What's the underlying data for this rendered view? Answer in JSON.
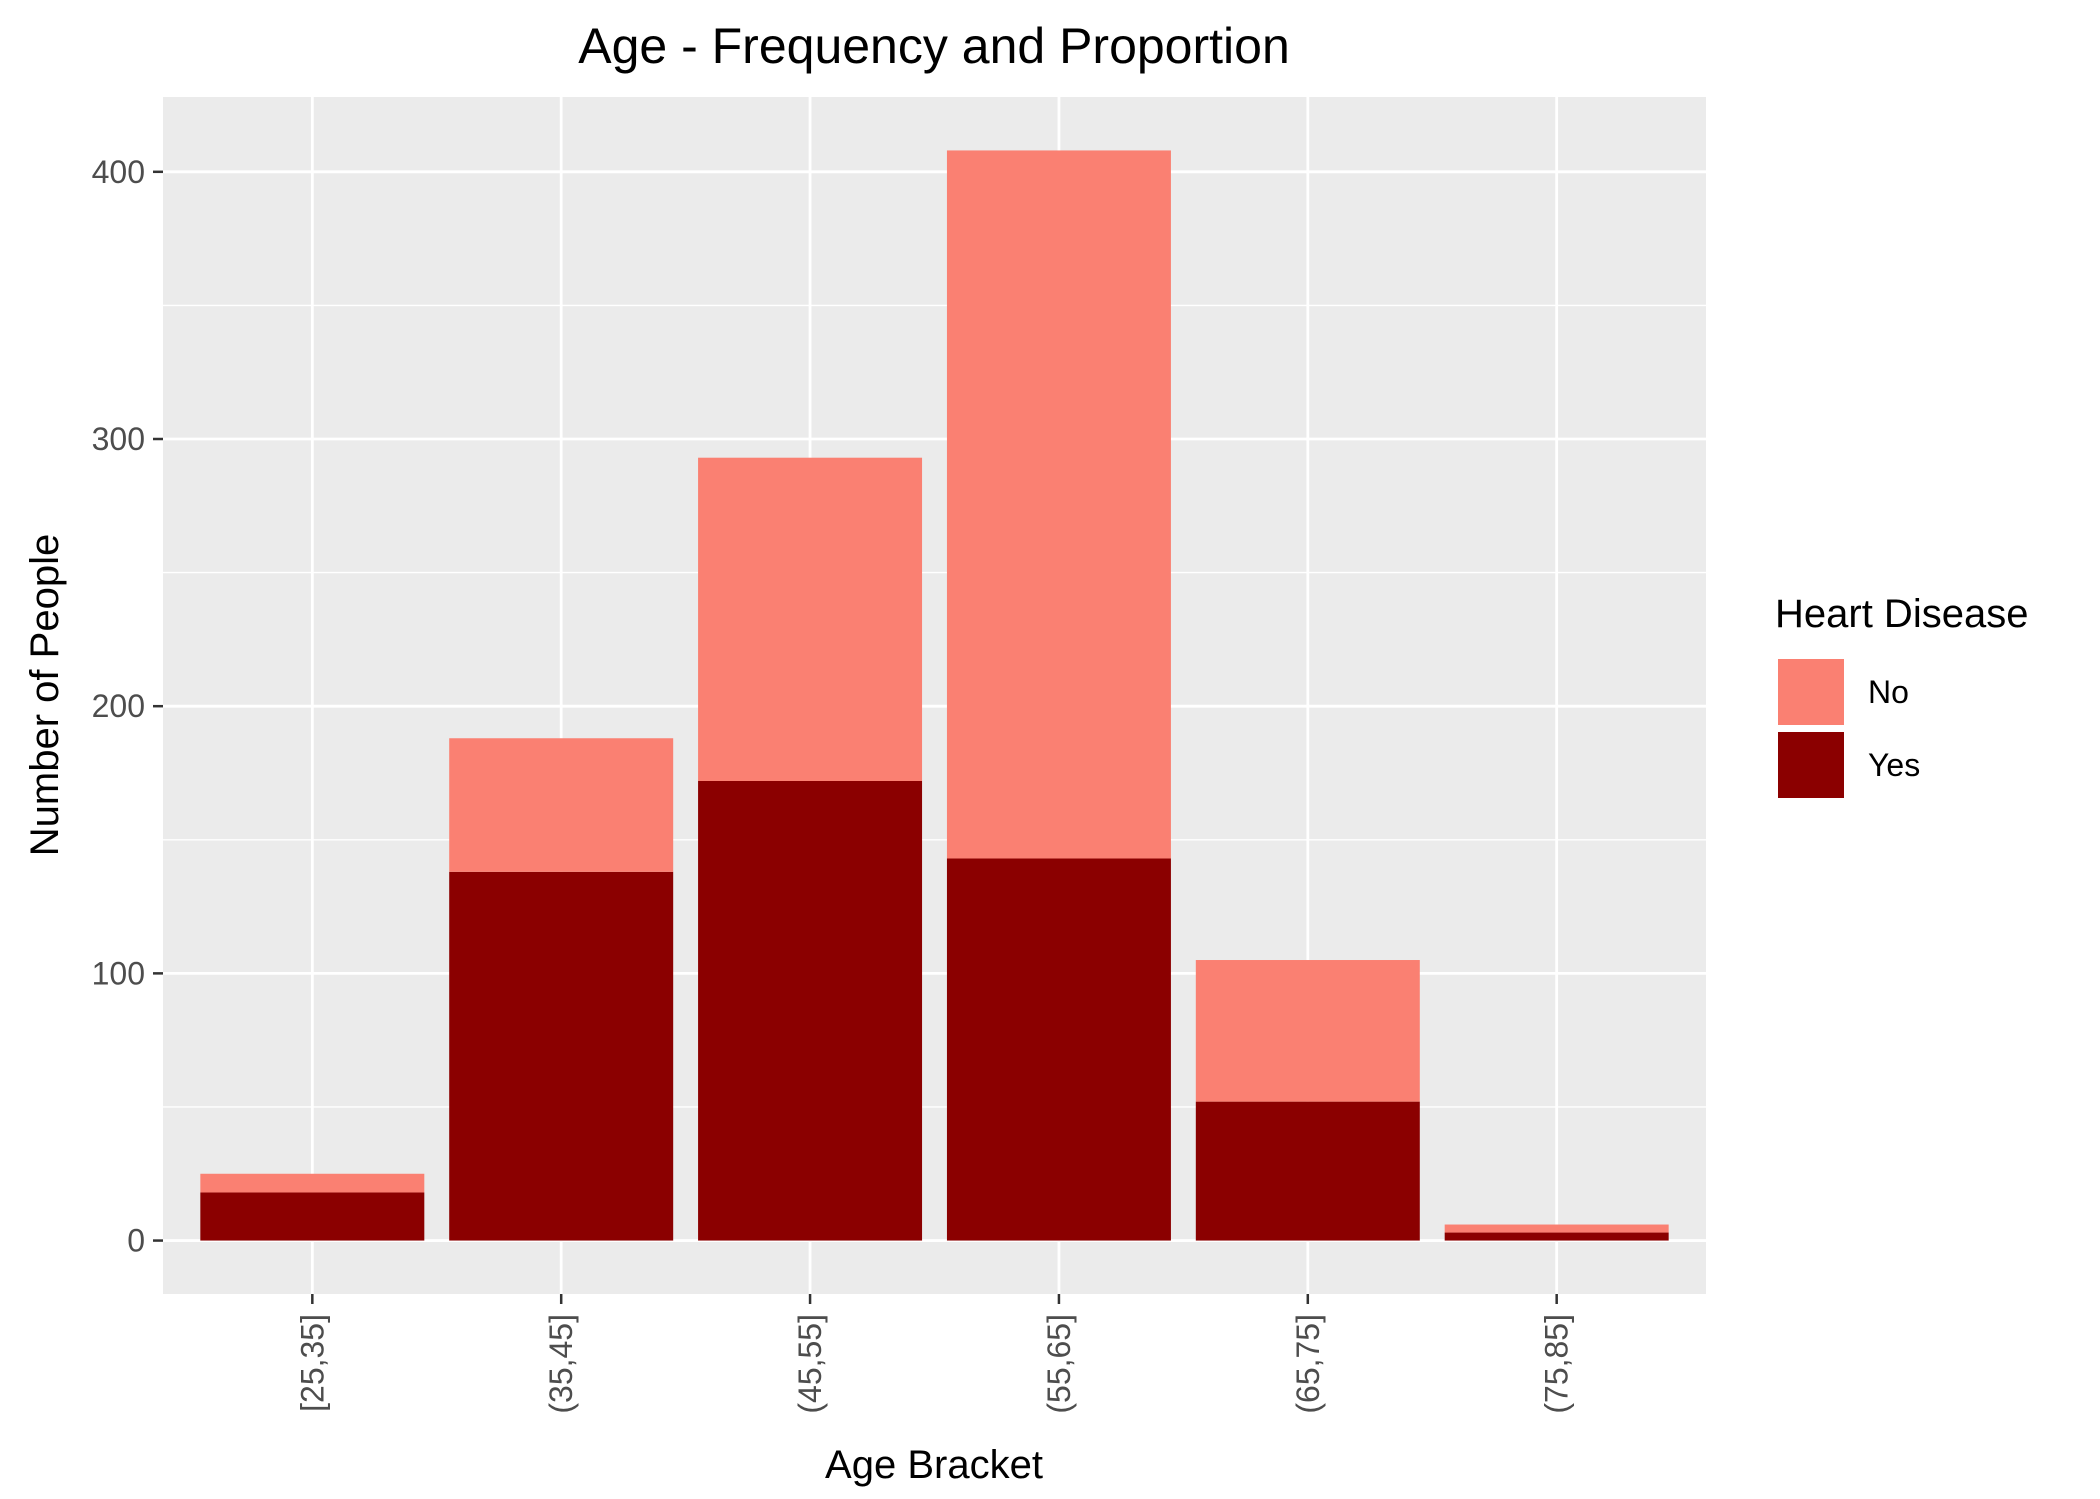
{
  "chart_data": {
    "type": "bar",
    "stacked": true,
    "title": "Age - Frequency and Proportion",
    "xlabel": "Age Bracket",
    "ylabel": "Number of People",
    "categories": [
      "[25,35]",
      "(35,45]",
      "(45,55]",
      "(55,65]",
      "(65,75]",
      "(75,85]"
    ],
    "series": [
      {
        "name": "No",
        "color": "#FA8072",
        "values": [
          7,
          50,
          121,
          265,
          53,
          3
        ]
      },
      {
        "name": "Yes",
        "color": "#8B0000",
        "values": [
          18,
          138,
          172,
          143,
          52,
          3
        ]
      }
    ],
    "stack_order_bottom_to_top": [
      "Yes",
      "No"
    ],
    "ylim": [
      -20,
      428
    ],
    "yticks": [
      0,
      100,
      200,
      300,
      400
    ],
    "grid": true,
    "legend": {
      "title": "Heart Disease",
      "placement": "right",
      "entries": [
        "No",
        "Yes"
      ]
    },
    "colors": {
      "panel_background": "#EBEBEB",
      "grid_line": "#FFFFFF",
      "tick_label": "#4D4D4D",
      "tick_mark": "#333333"
    }
  }
}
